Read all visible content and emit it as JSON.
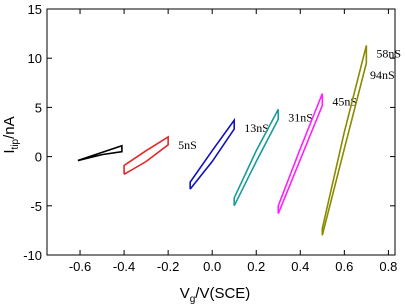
{
  "chart_data": {
    "type": "line",
    "xlabel": {
      "main": "V",
      "sub": "g",
      "unit": "/V(SCE)"
    },
    "ylabel": {
      "main": "I",
      "sub": "tip",
      "unit": "/nA"
    },
    "xlim": [
      -0.75,
      0.83
    ],
    "xticks": [
      -0.6,
      -0.4,
      -0.2,
      0.0,
      0.2,
      0.4,
      0.6,
      0.8
    ],
    "ylim": [
      -10,
      15
    ],
    "yticks": [
      -10,
      -5,
      0,
      5,
      10,
      15
    ],
    "series": [
      {
        "color": "#000000",
        "x": [
          -0.61,
          -0.41,
          -0.41,
          -0.5,
          -0.61
        ],
        "values": [
          -0.4,
          1.1,
          0.5,
          0.2,
          -0.4
        ]
      },
      {
        "name": "5nS",
        "color": "#e02828",
        "x": [
          -0.4,
          -0.3,
          -0.2,
          -0.2,
          -0.3,
          -0.4,
          -0.4
        ],
        "values": [
          -1.8,
          -0.5,
          1.2,
          2.0,
          0.6,
          -0.9,
          -1.8
        ]
      },
      {
        "name": "13nS",
        "color": "#1010c0",
        "x": [
          -0.1,
          0.0,
          0.1,
          0.1,
          0.0,
          -0.1,
          -0.1
        ],
        "values": [
          -3.3,
          -0.5,
          2.8,
          3.7,
          0.6,
          -2.6,
          -3.3
        ]
      },
      {
        "name": "31nS",
        "color": "#1a9a9a",
        "x": [
          0.1,
          0.2,
          0.3,
          0.3,
          0.2,
          0.1,
          0.1
        ],
        "values": [
          -5.0,
          -0.5,
          3.8,
          4.8,
          0.6,
          -4.2,
          -5.0
        ]
      },
      {
        "name": "45nS",
        "color": "#ff20ff",
        "x": [
          0.3,
          0.4,
          0.5,
          0.5,
          0.4,
          0.3,
          0.3
        ],
        "values": [
          -5.8,
          -0.3,
          5.2,
          6.4,
          0.8,
          -5.0,
          -5.8
        ]
      },
      {
        "name": "58nS",
        "color": "#8a8a00",
        "x": [
          0.5,
          0.6,
          0.7,
          0.7,
          0.6,
          0.5,
          0.5
        ],
        "values": [
          -8.0,
          0.8,
          9.5,
          11.3,
          2.5,
          -7.3,
          -8.0
        ]
      }
    ],
    "extra_label": "94nS"
  }
}
